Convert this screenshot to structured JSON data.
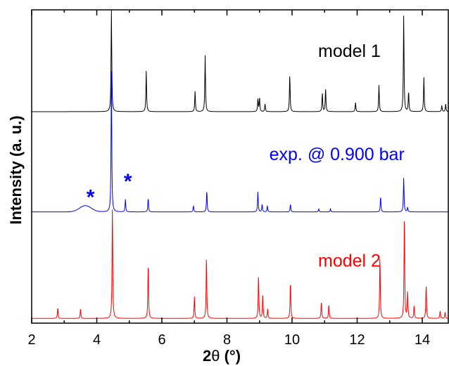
{
  "chart_data": {
    "type": "line",
    "xlabel": "2θ (°)",
    "ylabel": "Intensity (a. u.)",
    "xlim": [
      2,
      14.8
    ],
    "ylim": [
      0,
      1
    ],
    "x_ticks": [
      "2",
      "4",
      "6",
      "8",
      "10",
      "12",
      "14"
    ],
    "grid": false,
    "series": [
      {
        "name": "model 1",
        "color": "#000000",
        "baseline": 0.675,
        "peaks": [
          {
            "x": 4.45,
            "h": 0.33
          },
          {
            "x": 5.52,
            "h": 0.13
          },
          {
            "x": 7.02,
            "h": 0.065
          },
          {
            "x": 7.33,
            "h": 0.18
          },
          {
            "x": 8.95,
            "h": 0.04
          },
          {
            "x": 9.0,
            "h": 0.045
          },
          {
            "x": 9.17,
            "h": 0.025
          },
          {
            "x": 9.93,
            "h": 0.12
          },
          {
            "x": 10.93,
            "h": 0.06
          },
          {
            "x": 11.03,
            "h": 0.075
          },
          {
            "x": 11.95,
            "h": 0.03
          },
          {
            "x": 12.67,
            "h": 0.085
          },
          {
            "x": 13.43,
            "h": 0.31
          },
          {
            "x": 13.58,
            "h": 0.065
          },
          {
            "x": 14.05,
            "h": 0.11
          },
          {
            "x": 14.6,
            "h": 0.02
          },
          {
            "x": 14.72,
            "h": 0.025
          }
        ]
      },
      {
        "name": "exp. @ 0.900 bar",
        "color": "#0000ff",
        "baseline": 0.355,
        "peaks": [
          {
            "x": 4.45,
            "h": 0.45
          },
          {
            "x": 4.88,
            "h": 0.04
          },
          {
            "x": 5.58,
            "h": 0.045
          },
          {
            "x": 6.97,
            "h": 0.02
          },
          {
            "x": 7.38,
            "h": 0.07
          },
          {
            "x": 8.95,
            "h": 0.065
          },
          {
            "x": 9.08,
            "h": 0.025
          },
          {
            "x": 9.24,
            "h": 0.02
          },
          {
            "x": 9.95,
            "h": 0.025
          },
          {
            "x": 10.82,
            "h": 0.01
          },
          {
            "x": 11.18,
            "h": 0.01
          },
          {
            "x": 12.72,
            "h": 0.05
          },
          {
            "x": 13.43,
            "h": 0.11
          },
          {
            "x": 13.55,
            "h": 0.015
          }
        ],
        "humps": [
          {
            "x": 3.65,
            "h": 0.02,
            "w": 0.18
          }
        ]
      },
      {
        "name": "model 2",
        "color": "#ff0000",
        "baseline": 0.015,
        "peaks": [
          {
            "x": 2.8,
            "h": 0.035
          },
          {
            "x": 3.5,
            "h": 0.03
          },
          {
            "x": 4.48,
            "h": 0.36
          },
          {
            "x": 5.58,
            "h": 0.18
          },
          {
            "x": 7.0,
            "h": 0.07
          },
          {
            "x": 7.37,
            "h": 0.2
          },
          {
            "x": 8.97,
            "h": 0.14
          },
          {
            "x": 9.1,
            "h": 0.08
          },
          {
            "x": 9.25,
            "h": 0.03
          },
          {
            "x": 9.95,
            "h": 0.12
          },
          {
            "x": 10.9,
            "h": 0.055
          },
          {
            "x": 11.13,
            "h": 0.045
          },
          {
            "x": 12.7,
            "h": 0.2
          },
          {
            "x": 13.45,
            "h": 0.33
          },
          {
            "x": 13.55,
            "h": 0.085
          },
          {
            "x": 13.75,
            "h": 0.04
          },
          {
            "x": 14.12,
            "h": 0.11
          },
          {
            "x": 14.55,
            "h": 0.025
          },
          {
            "x": 14.7,
            "h": 0.02
          }
        ]
      }
    ],
    "annotations": [
      {
        "text": "model 1",
        "color": "#000000",
        "x": 10.8,
        "y": 0.85
      },
      {
        "text": "exp. @ 0.900 bar",
        "color": "#0000ff",
        "x": 9.3,
        "y": 0.52
      },
      {
        "text": "model 2",
        "color": "#ff0000",
        "x": 10.8,
        "y": 0.18
      },
      {
        "text": "*",
        "color": "#0000ff",
        "x": 3.68,
        "y": 0.38
      },
      {
        "text": "*",
        "color": "#0000ff",
        "x": 4.83,
        "y": 0.43
      }
    ]
  }
}
